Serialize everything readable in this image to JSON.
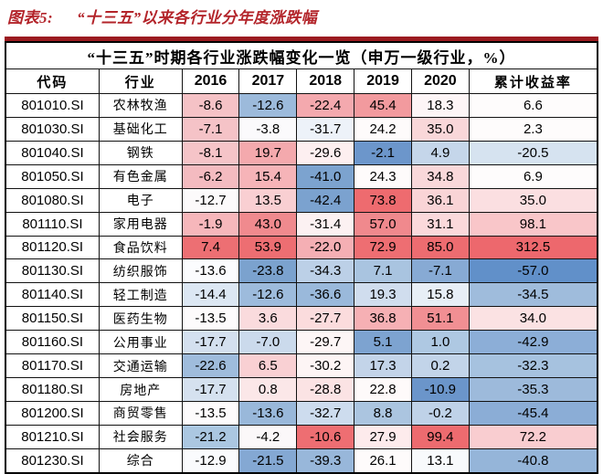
{
  "figure": {
    "label": "图表5:",
    "title": "“十三五”以来各行业分年度涨跌幅"
  },
  "accent_colors": {
    "caption_red": "#b3242a",
    "table_top_rule": "#9b1b20",
    "grid_line": "#121212"
  },
  "chart_data": {
    "type": "table",
    "title": "“十三五”时期各行业涨跌幅变化一览（申万一级行业，%）",
    "columns": [
      "代码",
      "行业",
      "2016",
      "2017",
      "2018",
      "2019",
      "2020",
      "累计收益率"
    ],
    "heatmap_scale": {
      "high_red": "#ED686D",
      "mid_white": "#FCFCFF",
      "low_blue": "#6190C9"
    },
    "rows": [
      {
        "code": "801010.SI",
        "industry": "农林牧渔",
        "values": [
          "-8.6",
          "-12.6",
          "-22.4",
          "45.4",
          "18.3",
          "6.6"
        ],
        "colors": [
          "#F5C2C6",
          "#9CBADB",
          "#F4A9AE",
          "#F29A9E",
          "#FDF5F6",
          "#FEFCFC"
        ]
      },
      {
        "code": "801030.SI",
        "industry": "基础化工",
        "values": [
          "-7.1",
          "-3.8",
          "-31.7",
          "24.2",
          "35.0",
          "2.3"
        ],
        "colors": [
          "#F5C3C7",
          "#FBFAFC",
          "#EDF2F9",
          "#FEFBFB",
          "#F9D7D9",
          "#FEFCFC"
        ]
      },
      {
        "code": "801040.SI",
        "industry": "钢铁",
        "values": [
          "-8.1",
          "19.7",
          "-29.6",
          "-2.1",
          "4.9",
          "-20.5"
        ],
        "colors": [
          "#F5C4C8",
          "#F4A9AD",
          "#FDEFF0",
          "#6C96CB",
          "#C5D6EA",
          "#D6E3F0"
        ]
      },
      {
        "code": "801050.SI",
        "industry": "有色金属",
        "values": [
          "-6.2",
          "15.4",
          "-41.0",
          "24.3",
          "34.8",
          "6.9"
        ],
        "colors": [
          "#F4BBC0",
          "#F6B4B8",
          "#7CA3CF",
          "#FEFBFB",
          "#F9D8DA",
          "#FEFCFC"
        ]
      },
      {
        "code": "801080.SI",
        "industry": "电子",
        "values": [
          "-12.7",
          "13.5",
          "-42.4",
          "73.8",
          "36.1",
          "35.0"
        ],
        "colors": [
          "#FCFAFB",
          "#F9CFD2",
          "#7BA2CF",
          "#EE6B6F",
          "#F9D4D6",
          "#FBDFE1"
        ]
      },
      {
        "code": "801110.SI",
        "industry": "家用电器",
        "values": [
          "-1.9",
          "43.0",
          "-31.4",
          "57.0",
          "31.1",
          "98.1"
        ],
        "colors": [
          "#F6B7BB",
          "#F08A8E",
          "#FCF1F2",
          "#F0898D",
          "#FBD9DB",
          "#F9C6C9"
        ]
      },
      {
        "code": "801120.SI",
        "industry": "食品饮料",
        "values": [
          "7.4",
          "53.9",
          "-22.0",
          "72.9",
          "85.0",
          "312.5"
        ],
        "colors": [
          "#ED6F73",
          "#ED6E72",
          "#F5AFB4",
          "#EE6E72",
          "#ED6C70",
          "#ED686D"
        ]
      },
      {
        "code": "801130.SI",
        "industry": "纺织服饰",
        "values": [
          "-13.6",
          "-23.8",
          "-34.3",
          "7.1",
          "-7.1",
          "-57.0"
        ],
        "colors": [
          "#FBFCFE",
          "#7BA2CE",
          "#BCD0E7",
          "#A9C4E0",
          "#87AAD4",
          "#6190C9"
        ]
      },
      {
        "code": "801140.SI",
        "industry": "轻工制造",
        "values": [
          "-14.4",
          "-12.6",
          "-36.6",
          "19.3",
          "15.8",
          "-34.5"
        ],
        "colors": [
          "#DCE7F3",
          "#9DBBDC",
          "#9AB9DB",
          "#D0DDEE",
          "#E7EEF6",
          "#9FBCDC"
        ]
      },
      {
        "code": "801150.SI",
        "industry": "医药生物",
        "values": [
          "-13.5",
          "3.6",
          "-27.7",
          "36.8",
          "51.1",
          "34.0"
        ],
        "colors": [
          "#FDFBFC",
          "#FADBDD",
          "#FBDCDD",
          "#F6B0B4",
          "#F18F93",
          "#FBE2E3"
        ]
      },
      {
        "code": "801160.SI",
        "industry": "公用事业",
        "values": [
          "-17.7",
          "-7.0",
          "-29.7",
          "5.1",
          "1.0",
          "-42.9"
        ],
        "colors": [
          "#D4E0EF",
          "#CBDAEC",
          "#FDF6F6",
          "#7DA3D0",
          "#AEC8E2",
          "#8CAED7"
        ]
      },
      {
        "code": "801170.SI",
        "industry": "交通运输",
        "values": [
          "-22.6",
          "6.5",
          "-30.2",
          "17.3",
          "0.2",
          "-32.3"
        ],
        "colors": [
          "#9FBCDC",
          "#F9D0D3",
          "#FDF5F5",
          "#C3D4E9",
          "#C2D4E9",
          "#A6C2DF"
        ]
      },
      {
        "code": "801180.SI",
        "industry": "房地产",
        "values": [
          "-17.7",
          "0.8",
          "-28.8",
          "22.8",
          "-10.9",
          "-35.3"
        ],
        "colors": [
          "#D5E1EF",
          "#FBE7E8",
          "#FBE3E4",
          "#FEFAFA",
          "#6B95CA",
          "#9DBADB"
        ]
      },
      {
        "code": "801200.SI",
        "industry": "商贸零售",
        "values": [
          "-13.5",
          "-13.6",
          "-32.7",
          "8.8",
          "-0.2",
          "-45.4"
        ],
        "colors": [
          "#FDFBFC",
          "#99B8DA",
          "#CDDCEE",
          "#ABC5E0",
          "#BFD2E8",
          "#8BADD6"
        ]
      },
      {
        "code": "801210.SI",
        "industry": "社会服务",
        "values": [
          "-21.2",
          "-4.2",
          "-10.6",
          "27.9",
          "99.4",
          "72.2"
        ],
        "colors": [
          "#ABC7E1",
          "#FBF8F9",
          "#EE6E72",
          "#FDEBEC",
          "#ED6B6F",
          "#F9CDD0"
        ]
      },
      {
        "code": "801230.SI",
        "industry": "综合",
        "values": [
          "-12.9",
          "-21.5",
          "-39.3",
          "26.1",
          "13.1",
          "-40.8"
        ],
        "colors": [
          "#FAFBFD",
          "#84A8D3",
          "#98B7DA",
          "#FEFBFB",
          "#F8FAFC",
          "#95B5D9"
        ]
      }
    ]
  }
}
